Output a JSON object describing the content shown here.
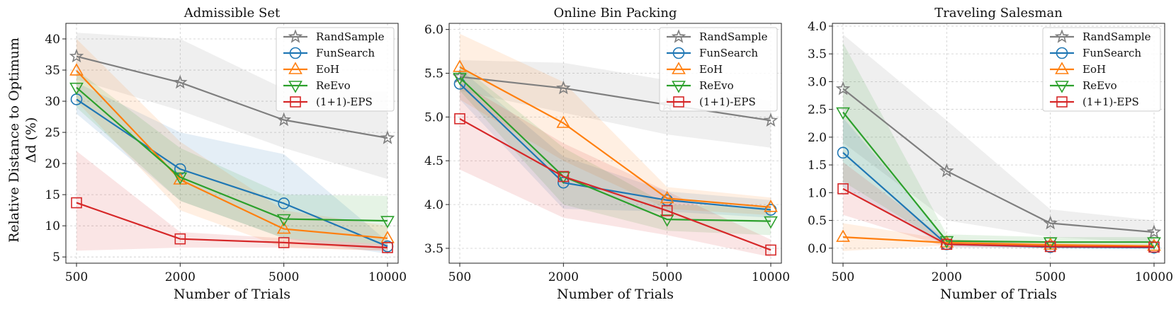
{
  "figure": {
    "ylabel_line1": "Relative Distance to Optimum",
    "ylabel_line2": "Δd (%)"
  },
  "chart_data": [
    {
      "type": "line",
      "title": "Admissible Set",
      "xlabel": "Number of Trials",
      "ylabel": "Relative Distance to Optimum Δd (%)",
      "categories": [
        "500",
        "2000",
        "5000",
        "10000"
      ],
      "ylim": [
        4,
        42.5
      ],
      "yticks": [
        5,
        10,
        15,
        20,
        25,
        30,
        35,
        40
      ],
      "ytick_labels": [
        "5",
        "10",
        "15",
        "20",
        "25",
        "30",
        "35",
        "40"
      ],
      "grid": true,
      "legend": "top-right",
      "series": [
        {
          "name": "RandSample",
          "color": "#7f7f7f",
          "marker": "star",
          "values": [
            37.2,
            33.0,
            27.0,
            24.1
          ],
          "band_low": [
            33.5,
            28.5,
            22.5,
            17.5
          ],
          "band_high": [
            41.0,
            40.0,
            32.0,
            31.5
          ]
        },
        {
          "name": "FunSearch",
          "color": "#1f77b4",
          "marker": "circle",
          "values": [
            30.3,
            19.1,
            13.6,
            6.7
          ],
          "band_low": [
            28.0,
            14.0,
            8.0,
            5.5
          ],
          "band_high": [
            33.0,
            25.0,
            21.5,
            7.5
          ]
        },
        {
          "name": "EoH",
          "color": "#ff7f0e",
          "marker": "triangle-up",
          "values": [
            34.9,
            17.4,
            9.5,
            8.0
          ],
          "band_low": [
            30.0,
            12.5,
            6.5,
            6.0
          ],
          "band_high": [
            40.0,
            23.5,
            12.5,
            10.0
          ]
        },
        {
          "name": "ReEvo",
          "color": "#2ca02c",
          "marker": "triangle-down",
          "values": [
            32.2,
            17.8,
            11.1,
            10.8
          ],
          "band_low": [
            29.0,
            14.0,
            8.0,
            7.0
          ],
          "band_high": [
            35.0,
            22.5,
            15.0,
            14.8
          ]
        },
        {
          "name": "(1+1)-EPS",
          "color": "#d62728",
          "marker": "square",
          "values": [
            13.7,
            7.9,
            7.3,
            6.5
          ],
          "band_low": [
            6.0,
            6.5,
            6.5,
            6.0
          ],
          "band_high": [
            22.0,
            9.0,
            8.0,
            7.0
          ]
        }
      ]
    },
    {
      "type": "line",
      "title": "Online Bin Packing",
      "xlabel": "Number of Trials",
      "ylabel": "",
      "categories": [
        "500",
        "2000",
        "5000",
        "10000"
      ],
      "ylim": [
        3.33,
        6.07
      ],
      "yticks": [
        3.5,
        4.0,
        4.5,
        5.0,
        5.5,
        6.0
      ],
      "ytick_labels": [
        "3.5",
        "4.0",
        "4.5",
        "5.0",
        "5.5",
        "6.0"
      ],
      "grid": true,
      "legend": "top-right",
      "series": [
        {
          "name": "RandSample",
          "color": "#7f7f7f",
          "marker": "star",
          "values": [
            5.46,
            5.33,
            5.14,
            4.96
          ],
          "band_low": [
            5.3,
            5.05,
            4.8,
            4.65
          ],
          "band_high": [
            5.65,
            5.62,
            5.42,
            5.18
          ]
        },
        {
          "name": "FunSearch",
          "color": "#1f77b4",
          "marker": "circle",
          "values": [
            5.38,
            4.25,
            4.05,
            3.94
          ],
          "band_low": [
            5.2,
            3.95,
            3.92,
            3.85
          ],
          "band_high": [
            5.55,
            4.55,
            4.15,
            4.05
          ]
        },
        {
          "name": "EoH",
          "color": "#ff7f0e",
          "marker": "triangle-up",
          "values": [
            5.57,
            4.93,
            4.07,
            3.97
          ],
          "band_low": [
            5.2,
            4.5,
            3.95,
            3.88
          ],
          "band_high": [
            5.95,
            5.4,
            4.2,
            4.08
          ]
        },
        {
          "name": "ReEvo",
          "color": "#2ca02c",
          "marker": "triangle-down",
          "values": [
            5.45,
            4.32,
            3.83,
            3.81
          ],
          "band_low": [
            5.3,
            4.0,
            3.7,
            3.65
          ],
          "band_high": [
            5.6,
            4.65,
            4.0,
            3.97
          ]
        },
        {
          "name": "(1+1)-EPS",
          "color": "#d62728",
          "marker": "square",
          "values": [
            4.98,
            4.32,
            3.93,
            3.48
          ],
          "band_low": [
            4.4,
            3.85,
            3.65,
            3.4
          ],
          "band_high": [
            5.4,
            4.7,
            4.15,
            3.6
          ]
        }
      ]
    },
    {
      "type": "line",
      "title": "Traveling Salesman",
      "xlabel": "Number of Trials",
      "ylabel": "",
      "categories": [
        "500",
        "2000",
        "5000",
        "10000"
      ],
      "ylim": [
        -0.27,
        4.05
      ],
      "yticks": [
        0.0,
        0.5,
        1.0,
        1.5,
        2.0,
        2.5,
        3.0,
        3.5,
        4.0
      ],
      "ytick_labels": [
        "0.0",
        "0.5",
        "1.0",
        "1.5",
        "2.0",
        "2.5",
        "3.0",
        "3.5",
        "4.0"
      ],
      "grid": true,
      "legend": "top-right",
      "series": [
        {
          "name": "RandSample",
          "color": "#7f7f7f",
          "marker": "star",
          "values": [
            2.87,
            1.39,
            0.45,
            0.29
          ],
          "band_low": [
            1.9,
            0.5,
            0.2,
            0.1
          ],
          "band_high": [
            3.85,
            2.3,
            0.7,
            0.5
          ]
        },
        {
          "name": "FunSearch",
          "color": "#1f77b4",
          "marker": "circle",
          "values": [
            1.72,
            0.07,
            0.02,
            0.01
          ],
          "band_low": [
            1.1,
            0.02,
            0.0,
            0.0
          ],
          "band_high": [
            2.35,
            0.15,
            0.06,
            0.03
          ]
        },
        {
          "name": "EoH",
          "color": "#ff7f0e",
          "marker": "triangle-up",
          "values": [
            0.2,
            0.1,
            0.06,
            0.04
          ],
          "band_low": [
            -0.05,
            0.05,
            0.02,
            0.01
          ],
          "band_high": [
            0.45,
            0.16,
            0.1,
            0.07
          ]
        },
        {
          "name": "ReEvo",
          "color": "#2ca02c",
          "marker": "triangle-down",
          "values": [
            2.45,
            0.13,
            0.11,
            0.11
          ],
          "band_low": [
            1.2,
            0.05,
            0.05,
            0.05
          ],
          "band_high": [
            3.7,
            0.25,
            0.2,
            0.2
          ]
        },
        {
          "name": "(1+1)-EPS",
          "color": "#d62728",
          "marker": "square",
          "values": [
            1.07,
            0.07,
            0.03,
            0.02
          ],
          "band_low": [
            0.6,
            0.02,
            0.0,
            0.0
          ],
          "band_high": [
            1.55,
            0.15,
            0.08,
            0.05
          ]
        }
      ]
    }
  ]
}
